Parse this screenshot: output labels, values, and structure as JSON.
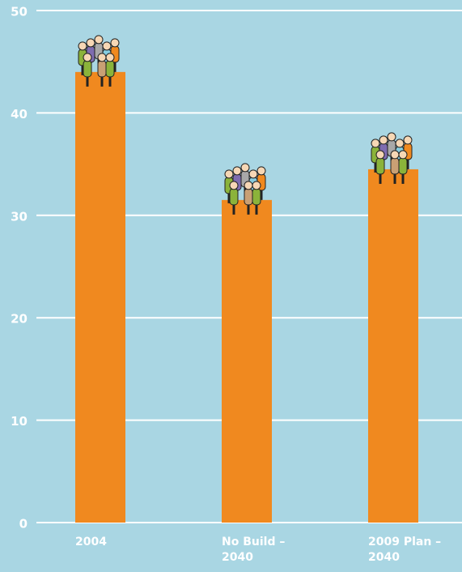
{
  "chart_data": {
    "type": "bar",
    "categories": [
      "2004",
      "No Build – 2040",
      "2009 Plan – 2040"
    ],
    "values": [
      44,
      31.5,
      34.5
    ],
    "color": "#f0891f",
    "ylim": [
      0,
      50
    ],
    "yticks": [
      0,
      10,
      20,
      30,
      40,
      50
    ],
    "grid": true
  }
}
